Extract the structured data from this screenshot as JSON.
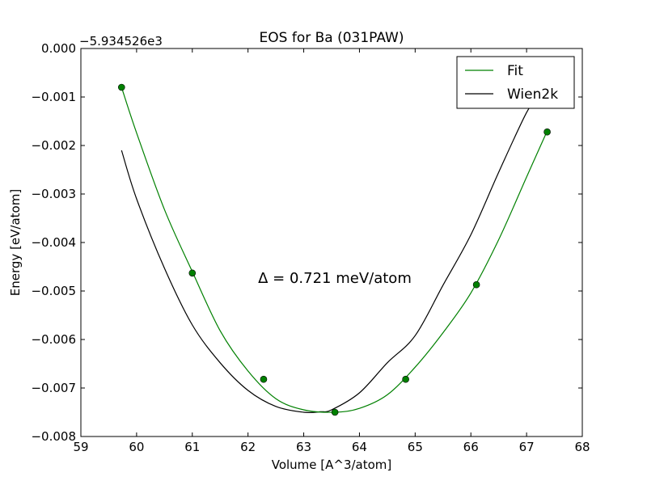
{
  "chart_data": {
    "type": "line",
    "title": "EOS for Ba (031PAW)",
    "xlabel": "Volume [A^3/atom]",
    "ylabel": "Energy [eV/atom]",
    "offset_label": "−5.934526e3",
    "annotation": "Δ = 0.721 meV/atom",
    "xlim": [
      59,
      68
    ],
    "ylim": [
      -0.008,
      0.0
    ],
    "xticks": [
      59,
      60,
      61,
      62,
      63,
      64,
      65,
      66,
      67,
      68
    ],
    "xtick_labels": [
      "59",
      "60",
      "61",
      "62",
      "63",
      "64",
      "65",
      "66",
      "67",
      "68"
    ],
    "yticks": [
      0.0,
      -0.001,
      -0.002,
      -0.003,
      -0.004,
      -0.005,
      -0.006,
      -0.007,
      -0.008
    ],
    "ytick_labels": [
      "0.000",
      "−0.001",
      "−0.002",
      "−0.003",
      "−0.004",
      "−0.005",
      "−0.006",
      "−0.007",
      "−0.008"
    ],
    "grid": false,
    "legend_position": "top-right",
    "series": [
      {
        "name": "Fit",
        "type": "line",
        "color": "#008000",
        "x": [
          59.73,
          60.0,
          60.5,
          61.0,
          61.5,
          62.0,
          62.5,
          63.0,
          63.55,
          64.0,
          64.5,
          65.0,
          65.5,
          66.0,
          66.5,
          67.0,
          67.37
        ],
        "values": [
          -0.0008,
          -0.00174,
          -0.00332,
          -0.0046,
          -0.00582,
          -0.00665,
          -0.00722,
          -0.00745,
          -0.0075,
          -0.00742,
          -0.00714,
          -0.00657,
          -0.00586,
          -0.00504,
          -0.00394,
          -0.00265,
          -0.0017
        ]
      },
      {
        "name": "Wien2k",
        "type": "line",
        "color": "#000000",
        "x": [
          59.73,
          60.0,
          60.5,
          61.0,
          61.5,
          62.0,
          62.5,
          63.0,
          63.3,
          63.5,
          64.0,
          64.5,
          65.0,
          65.5,
          66.0,
          66.5,
          67.0,
          67.2
        ],
        "values": [
          -0.0021,
          -0.0031,
          -0.00453,
          -0.0057,
          -0.00648,
          -0.00705,
          -0.00738,
          -0.0075,
          -0.00749,
          -0.00745,
          -0.0071,
          -0.00648,
          -0.00592,
          -0.00488,
          -0.00384,
          -0.00255,
          -0.00132,
          -0.00104
        ]
      }
    ],
    "points": {
      "color": "#008000",
      "x": [
        59.73,
        61.0,
        62.28,
        63.56,
        64.83,
        66.1,
        67.37
      ],
      "values": [
        -0.0008,
        -0.00463,
        -0.00682,
        -0.0075,
        -0.00682,
        -0.00487,
        -0.00172
      ]
    }
  }
}
